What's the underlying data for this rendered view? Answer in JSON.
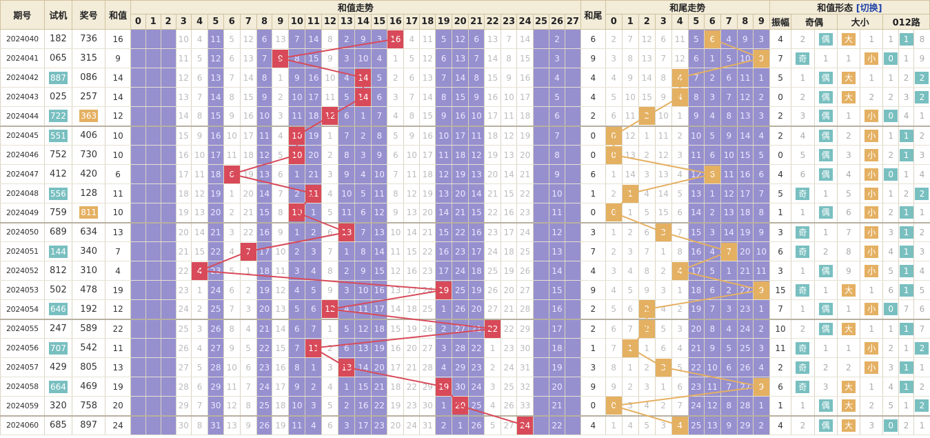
{
  "headers": {
    "issue": "期号",
    "trial": "试机",
    "prize": "奖号",
    "sum": "和值",
    "sum_trend": "和值走势",
    "tail": "和尾",
    "tail_trend": "和尾走势",
    "form": "和值形态",
    "switch": "[切换]",
    "amp": "振幅",
    "oddeven": "奇偶",
    "bigsmall": "大小",
    "road": "012路",
    "sum_cols": [
      "0",
      "1",
      "2",
      "3",
      "4",
      "5",
      "6",
      "7",
      "8",
      "9",
      "10",
      "11",
      "12",
      "13",
      "14",
      "15",
      "16",
      "17",
      "18",
      "19",
      "20",
      "21",
      "22",
      "23",
      "24",
      "25",
      "26",
      "27"
    ],
    "tail_cols": [
      "0",
      "1",
      "2",
      "3",
      "4",
      "5",
      "6",
      "7",
      "8",
      "9"
    ]
  },
  "colors": {
    "hit_line": "#d84a59",
    "tail_line": "#e4b062",
    "purple": "#9690cf",
    "teal": "#79bfc0"
  },
  "rows": [
    {
      "issue": "2024040",
      "trial": "182",
      "trial_hl": false,
      "prize": "736",
      "prize_hl": false,
      "sum": "16",
      "tail": "6",
      "amp": "4",
      "odd": "2",
      "oe": "偶",
      "oe_type": "even",
      "big": "大",
      "big_pos": 0,
      "bs_rest": "1",
      "road": "1",
      "road_pos": 1,
      "road_nums": [
        "1",
        "8"
      ]
    },
    {
      "issue": "2024041",
      "trial": "065",
      "trial_hl": false,
      "prize": "315",
      "prize_hl": false,
      "sum": "9",
      "tail": "9",
      "amp": "7",
      "odd": "奇",
      "oe": "1",
      "oe_type": "odd",
      "big": "小",
      "big_pos": 1,
      "bs_rest": "1",
      "road": "0",
      "road_pos": 0,
      "road_nums": [
        "1",
        "9"
      ]
    },
    {
      "issue": "2024042",
      "trial": "887",
      "trial_hl": true,
      "prize": "086",
      "prize_hl": false,
      "sum": "14",
      "tail": "4",
      "amp": "5",
      "odd": "1",
      "oe": "偶",
      "oe_type": "even",
      "big": "大",
      "big_pos": 0,
      "bs_rest": "1",
      "road": "2",
      "road_pos": 2,
      "road_nums": [
        "1",
        "2"
      ]
    },
    {
      "issue": "2024043",
      "trial": "025",
      "trial_hl": false,
      "prize": "257",
      "prize_hl": false,
      "sum": "14",
      "tail": "4",
      "amp": "0",
      "odd": "2",
      "oe": "偶",
      "oe_type": "even",
      "big": "大",
      "big_pos": 0,
      "bs_rest": "2",
      "road": "2",
      "road_pos": 2,
      "road_nums": [
        "2",
        "3"
      ]
    },
    {
      "issue": "2024044",
      "trial": "722",
      "trial_hl": true,
      "prize": "363",
      "prize_hl": true,
      "sum": "12",
      "tail": "2",
      "amp": "2",
      "odd": "3",
      "oe": "偶",
      "oe_type": "even",
      "big": "小",
      "big_pos": 1,
      "bs_rest": "1",
      "road": "0",
      "road_pos": 0,
      "road_nums": [
        "4",
        "1"
      ]
    },
    {
      "issue": "2024045",
      "trial": "551",
      "trial_hl": true,
      "prize": "406",
      "prize_hl": false,
      "sum": "10",
      "tail": "0",
      "amp": "2",
      "odd": "4",
      "oe": "偶",
      "oe_type": "even",
      "big": "小",
      "big_pos": 1,
      "bs_rest": "2",
      "road": "1",
      "road_pos": 1,
      "road_nums": [
        "1",
        "2"
      ]
    },
    {
      "issue": "2024046",
      "trial": "752",
      "trial_hl": false,
      "prize": "730",
      "prize_hl": false,
      "sum": "10",
      "tail": "0",
      "amp": "0",
      "odd": "5",
      "oe": "偶",
      "oe_type": "even",
      "big": "小",
      "big_pos": 1,
      "bs_rest": "3",
      "road": "1",
      "road_pos": 1,
      "road_nums": [
        "2",
        "3"
      ]
    },
    {
      "issue": "2024047",
      "trial": "412",
      "trial_hl": false,
      "prize": "420",
      "prize_hl": false,
      "sum": "6",
      "tail": "6",
      "amp": "4",
      "odd": "6",
      "oe": "偶",
      "oe_type": "even",
      "big": "小",
      "big_pos": 1,
      "bs_rest": "4",
      "road": "0",
      "road_pos": 0,
      "road_nums": [
        "1",
        "4"
      ]
    },
    {
      "issue": "2024048",
      "trial": "556",
      "trial_hl": true,
      "prize": "128",
      "prize_hl": false,
      "sum": "11",
      "tail": "1",
      "amp": "5",
      "odd": "奇",
      "oe": "1",
      "oe_type": "odd",
      "big": "小",
      "big_pos": 1,
      "bs_rest": "5",
      "road": "2",
      "road_pos": 2,
      "road_nums": [
        "1",
        "2"
      ]
    },
    {
      "issue": "2024049",
      "trial": "759",
      "trial_hl": false,
      "prize": "811",
      "prize_hl": true,
      "sum": "10",
      "tail": "0",
      "amp": "1",
      "odd": "1",
      "oe": "偶",
      "oe_type": "even",
      "big": "小",
      "big_pos": 1,
      "bs_rest": "6",
      "road": "1",
      "road_pos": 1,
      "road_nums": [
        "2",
        "1"
      ]
    },
    {
      "issue": "2024050",
      "trial": "689",
      "trial_hl": false,
      "prize": "634",
      "prize_hl": false,
      "sum": "13",
      "tail": "3",
      "amp": "3",
      "odd": "奇",
      "oe": "1",
      "oe_type": "odd",
      "big": "小",
      "big_pos": 1,
      "bs_rest": "7",
      "road": "1",
      "road_pos": 1,
      "road_nums": [
        "3",
        "2"
      ]
    },
    {
      "issue": "2024051",
      "trial": "144",
      "trial_hl": true,
      "prize": "340",
      "prize_hl": false,
      "sum": "7",
      "tail": "7",
      "amp": "6",
      "odd": "奇",
      "oe": "2",
      "oe_type": "odd",
      "big": "小",
      "big_pos": 1,
      "bs_rest": "8",
      "road": "1",
      "road_pos": 1,
      "road_nums": [
        "4",
        "3"
      ]
    },
    {
      "issue": "2024052",
      "trial": "812",
      "trial_hl": false,
      "prize": "310",
      "prize_hl": false,
      "sum": "4",
      "tail": "4",
      "amp": "3",
      "odd": "1",
      "oe": "偶",
      "oe_type": "even",
      "big": "小",
      "big_pos": 1,
      "bs_rest": "9",
      "road": "1",
      "road_pos": 1,
      "road_nums": [
        "5",
        "4"
      ]
    },
    {
      "issue": "2024053",
      "trial": "502",
      "trial_hl": false,
      "prize": "478",
      "prize_hl": false,
      "sum": "19",
      "tail": "9",
      "amp": "15",
      "odd": "奇",
      "oe": "1",
      "oe_type": "odd",
      "big": "大",
      "big_pos": 0,
      "bs_rest": "1",
      "road": "1",
      "road_pos": 1,
      "road_nums": [
        "6",
        "5"
      ]
    },
    {
      "issue": "2024054",
      "trial": "646",
      "trial_hl": true,
      "prize": "192",
      "prize_hl": false,
      "sum": "12",
      "tail": "2",
      "amp": "7",
      "odd": "1",
      "oe": "偶",
      "oe_type": "even",
      "big": "小",
      "big_pos": 1,
      "bs_rest": "1",
      "road": "0",
      "road_pos": 0,
      "road_nums": [
        "7",
        "6"
      ]
    },
    {
      "issue": "2024055",
      "trial": "247",
      "trial_hl": false,
      "prize": "589",
      "prize_hl": false,
      "sum": "22",
      "tail": "2",
      "amp": "10",
      "odd": "2",
      "oe": "偶",
      "oe_type": "even",
      "big": "大",
      "big_pos": 0,
      "bs_rest": "1",
      "road": "1",
      "road_pos": 1,
      "road_nums": [
        "1",
        "7"
      ]
    },
    {
      "issue": "2024056",
      "trial": "707",
      "trial_hl": true,
      "prize": "542",
      "prize_hl": false,
      "sum": "11",
      "tail": "1",
      "amp": "11",
      "odd": "奇",
      "oe": "1",
      "oe_type": "odd",
      "big": "小",
      "big_pos": 1,
      "bs_rest": "1",
      "road": "2",
      "road_pos": 2,
      "road_nums": [
        "2",
        "1"
      ]
    },
    {
      "issue": "2024057",
      "trial": "429",
      "trial_hl": false,
      "prize": "805",
      "prize_hl": false,
      "sum": "13",
      "tail": "3",
      "amp": "2",
      "odd": "奇",
      "oe": "2",
      "oe_type": "odd",
      "big": "小",
      "big_pos": 1,
      "bs_rest": "2",
      "road": "1",
      "road_pos": 1,
      "road_nums": [
        "3",
        "1"
      ]
    },
    {
      "issue": "2024058",
      "trial": "664",
      "trial_hl": true,
      "prize": "469",
      "prize_hl": false,
      "sum": "19",
      "tail": "9",
      "amp": "6",
      "odd": "奇",
      "oe": "3",
      "oe_type": "odd",
      "big": "大",
      "big_pos": 0,
      "bs_rest": "1",
      "road": "1",
      "road_pos": 1,
      "road_nums": [
        "4",
        "2"
      ]
    },
    {
      "issue": "2024059",
      "trial": "320",
      "trial_hl": false,
      "prize": "758",
      "prize_hl": false,
      "sum": "20",
      "tail": "0",
      "amp": "1",
      "odd": "1",
      "oe": "偶",
      "oe_type": "even",
      "big": "大",
      "big_pos": 0,
      "bs_rest": "2",
      "road": "2",
      "road_pos": 2,
      "road_nums": [
        "5",
        "1"
      ]
    },
    {
      "issue": "2024060",
      "trial": "685",
      "trial_hl": false,
      "prize": "897",
      "prize_hl": false,
      "sum": "24",
      "tail": "4",
      "amp": "4",
      "odd": "2",
      "oe": "偶",
      "oe_type": "even",
      "big": "大",
      "big_pos": 0,
      "bs_rest": "3",
      "road": "0",
      "road_pos": 0,
      "road_nums": [
        "2",
        "1"
      ]
    }
  ]
}
